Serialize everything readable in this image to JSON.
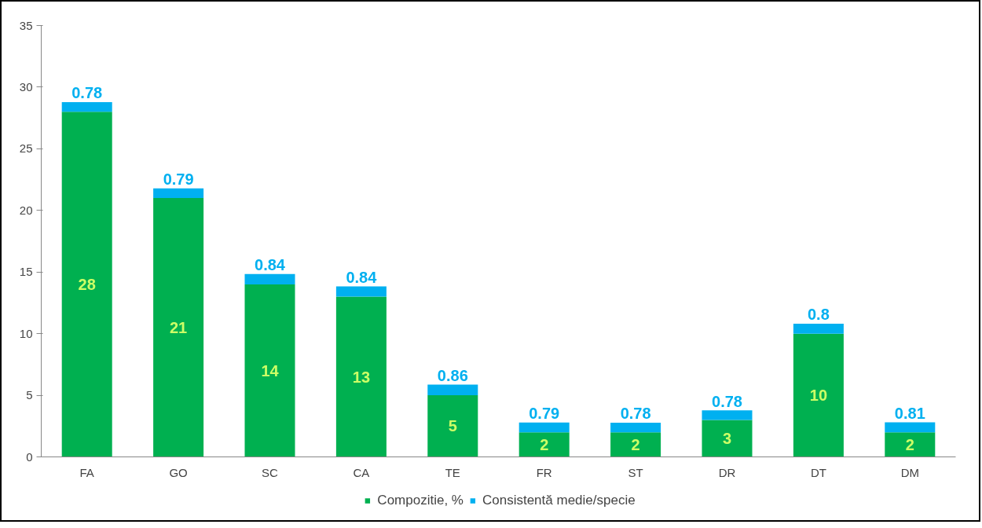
{
  "chart_data": {
    "type": "bar",
    "stacked": true,
    "categories": [
      "FA",
      "GO",
      "SC",
      "CA",
      "TE",
      "FR",
      "ST",
      "DR",
      "DT",
      "DM"
    ],
    "series": [
      {
        "name": "Compozitie, %",
        "color": "#00b050",
        "values": [
          28,
          21,
          14,
          13,
          5,
          2,
          2,
          3,
          10,
          2
        ]
      },
      {
        "name": "Consistentă medie/specie",
        "color": "#00b0f0",
        "values": [
          0.78,
          0.79,
          0.84,
          0.84,
          0.86,
          0.79,
          0.78,
          0.78,
          0.8,
          0.81
        ]
      }
    ],
    "ylim": [
      0,
      35
    ],
    "yticks": [
      0,
      5,
      10,
      15,
      20,
      25,
      30,
      35
    ],
    "grid": false,
    "legend": "bottom",
    "data_labels": true
  }
}
